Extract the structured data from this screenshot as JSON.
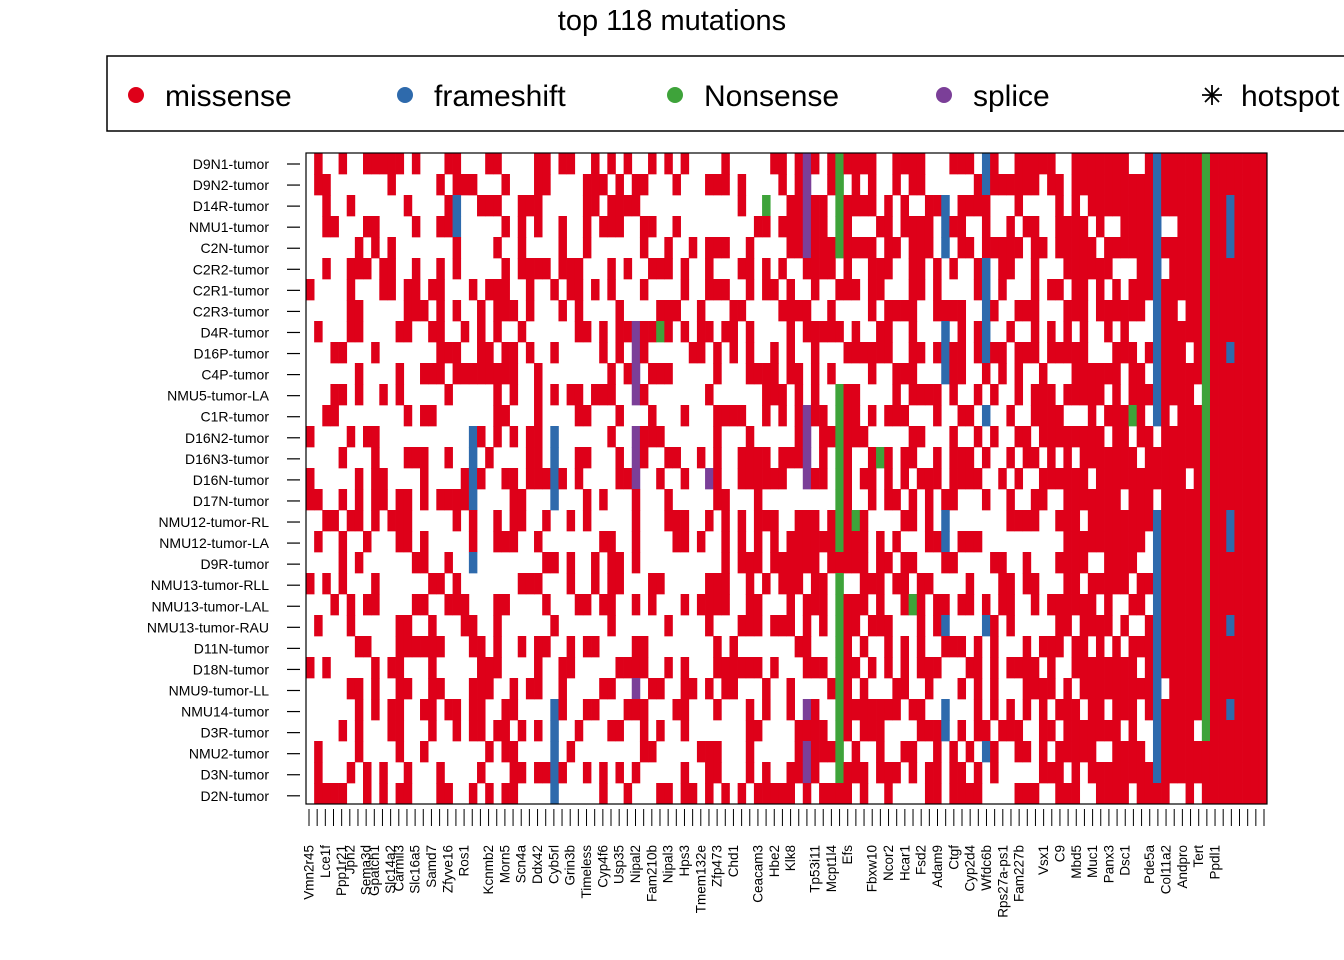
{
  "chart_data": {
    "type": "heatmap",
    "title": "top 118 mutations",
    "n_genes": 118,
    "legend": {
      "placement": "top",
      "entries": [
        {
          "label": "missense",
          "color": "#de0019",
          "marker": "dot"
        },
        {
          "label": "frameshift",
          "color": "#2e6aac",
          "marker": "dot"
        },
        {
          "label": "Nonsense",
          "color": "#3ea33a",
          "marker": "dot"
        },
        {
          "label": "splice",
          "color": "#7b3f98",
          "marker": "dot"
        },
        {
          "label": "hotspot",
          "color": "#000000",
          "marker": "asterisk"
        }
      ]
    },
    "samples": [
      "D9N1-tumor",
      "D9N2-tumor",
      "D14R-tumor",
      "NMU1-tumor",
      "C2N-tumor",
      "C2R2-tumor",
      "C2R1-tumor",
      "C2R3-tumor",
      "D4R-tumor",
      "D16P-tumor",
      "C4P-tumor",
      "NMU5-tumor-LA",
      "C1R-tumor",
      "D16N2-tumor",
      "D16N3-tumor",
      "D16N-tumor",
      "D17N-tumor",
      "NMU12-tumor-RL",
      "NMU12-tumor-LA",
      "D9R-tumor",
      "NMU13-tumor-RLL",
      "NMU13-tumor-LAL",
      "NMU13-tumor-RAU",
      "D11N-tumor",
      "D18N-tumor",
      "NMU9-tumor-LL",
      "NMU14-tumor",
      "D3R-tumor",
      "NMU2-tumor",
      "D3N-tumor",
      "D2N-tumor"
    ],
    "gene_labels": [
      "Vmn2r45",
      "Lce1f",
      "Ppp1r21",
      "Jph2",
      "Sema3d",
      "Gpatch1",
      "Slc14a2",
      "Carmil3",
      "Slc16a5",
      "Samd7",
      "Zfyve16",
      "Ros1",
      "Kcnmb2",
      "Morn5",
      "Scn4a",
      "Ddx42",
      "Cyb5rl",
      "Grin3b",
      "Timeless",
      "Cyp4f6",
      "Usp35",
      "Nipal2",
      "Fam210b",
      "Nipal3",
      "Hps3",
      "Tmem132e",
      "Zfp473",
      "Chd1",
      "Ceacam3",
      "Hbe2",
      "Klk8",
      "Tp53i11",
      "Mcpt1l4",
      "Efs",
      "Fbxw10",
      "Ncor2",
      "Hcar1",
      "Fsd2",
      "Adam9",
      "Ctgf",
      "Cyp2d4",
      "Wfdc6b",
      "Rps27a-ps1",
      "Fam227b",
      "Vsx1",
      "C9",
      "Mbd5",
      "Muc1",
      "Panx3",
      "Dsc1",
      "Pde5a",
      "Col11a2",
      "Andpro",
      "Tert",
      "Ppdl1"
    ],
    "gene_label_columns": [
      0,
      2,
      4,
      5,
      7,
      8,
      10,
      11,
      13,
      15,
      17,
      19,
      22,
      24,
      26,
      28,
      30,
      32,
      34,
      36,
      38,
      40,
      42,
      44,
      46,
      48,
      50,
      52,
      55,
      57,
      59,
      62,
      64,
      66,
      69,
      71,
      73,
      75,
      77,
      79,
      81,
      83,
      85,
      87,
      90,
      92,
      94,
      96,
      98,
      100,
      103,
      105,
      107,
      109,
      111
    ],
    "column_density": [
      0.3,
      0.26,
      0.34,
      0.3,
      0.36,
      0.3,
      0.48,
      0.32,
      0.36,
      0.38,
      0.34,
      0.36,
      0.32,
      0.38,
      0.34,
      0.4,
      0.36,
      0.42,
      0.38,
      0.36,
      0.44,
      0.4,
      0.46,
      0.5,
      0.42,
      0.4,
      0.38,
      0.36,
      0.4,
      0.36,
      0.32,
      0.38,
      0.42,
      0.4,
      0.36,
      0.34,
      0.4,
      0.36,
      0.42,
      0.3,
      0.38,
      0.36,
      0.34,
      0.32,
      0.36,
      0.42,
      0.38,
      0.3,
      0.28,
      0.34,
      0.38,
      0.4,
      0.3,
      0.36,
      0.46,
      0.52,
      0.46,
      0.38,
      0.34,
      0.6,
      0.66,
      0.58,
      0.6,
      0.56,
      0.54,
      0.58,
      0.62,
      0.6,
      0.64,
      0.6,
      0.58,
      0.56,
      0.5,
      0.62,
      0.58,
      0.56,
      0.54,
      0.52,
      0.5,
      0.5,
      0.54,
      0.56,
      0.52,
      0.5,
      0.48,
      0.46,
      0.5,
      0.52,
      0.54,
      0.58,
      0.56,
      0.6,
      0.64,
      0.66,
      0.7,
      0.74,
      0.72,
      0.7,
      0.76,
      0.78,
      0.8,
      0.82,
      0.78,
      0.8,
      0.84,
      0.86,
      0.88,
      0.9,
      0.92,
      0.94,
      0.96,
      0.97,
      0.98,
      1.0,
      1.0,
      1.0,
      1.0,
      1.0
    ],
    "special_cells": [
      {
        "gene": 18,
        "type": "frameshift",
        "rows": [
          2,
          3
        ]
      },
      {
        "gene": 20,
        "type": "frameshift",
        "rows": [
          13,
          14,
          15,
          16,
          19
        ]
      },
      {
        "gene": 30,
        "type": "frameshift",
        "rows": [
          13,
          14,
          15,
          16,
          26,
          27,
          28,
          29,
          30
        ]
      },
      {
        "gene": 40,
        "type": "splice",
        "rows": [
          8,
          9,
          10,
          11,
          13,
          14,
          15,
          25
        ]
      },
      {
        "gene": 43,
        "type": "Nonsense",
        "rows": [
          8
        ]
      },
      {
        "gene": 49,
        "type": "splice",
        "rows": [
          15
        ]
      },
      {
        "gene": 56,
        "type": "Nonsense",
        "rows": [
          2
        ]
      },
      {
        "gene": 61,
        "type": "splice",
        "rows": [
          0,
          1,
          2,
          3,
          4,
          12,
          13,
          14,
          15,
          26,
          28,
          29
        ]
      },
      {
        "gene": 65,
        "type": "Nonsense",
        "rows": [
          0,
          1,
          2,
          3,
          4,
          11,
          12,
          13,
          14,
          15,
          16,
          17,
          18,
          20,
          21,
          22,
          23,
          24,
          25,
          26,
          27,
          28,
          29
        ]
      },
      {
        "gene": 67,
        "type": "Nonsense",
        "rows": [
          17
        ]
      },
      {
        "gene": 70,
        "type": "Nonsense",
        "rows": [
          14
        ]
      },
      {
        "gene": 74,
        "type": "Nonsense",
        "rows": [
          21
        ]
      },
      {
        "gene": 78,
        "type": "frameshift",
        "rows": [
          2,
          3,
          4,
          8,
          9,
          10,
          17,
          18,
          22,
          26,
          27
        ]
      },
      {
        "gene": 83,
        "type": "frameshift",
        "rows": [
          0,
          1,
          5,
          6,
          7,
          8,
          9,
          12,
          22,
          28
        ]
      },
      {
        "gene": 101,
        "type": "Nonsense",
        "rows": [
          12
        ]
      },
      {
        "gene": 104,
        "type": "frameshift",
        "rows": [
          0,
          1,
          2,
          3,
          4,
          5,
          6,
          7,
          8,
          9,
          10,
          11,
          12,
          17,
          18,
          19,
          20,
          21,
          22,
          23,
          24,
          25,
          26,
          27,
          28,
          29
        ]
      },
      {
        "gene": 110,
        "type": "Nonsense",
        "rows": [
          0,
          1,
          2,
          3,
          4,
          5,
          6,
          7,
          8,
          9,
          10,
          11,
          12,
          13,
          14,
          15,
          16,
          17,
          18,
          19,
          20,
          21,
          22,
          23,
          24,
          25,
          26,
          27
        ]
      },
      {
        "gene": 113,
        "type": "frameshift",
        "rows": [
          2,
          3,
          4,
          9,
          17,
          18,
          22,
          26
        ]
      }
    ]
  }
}
